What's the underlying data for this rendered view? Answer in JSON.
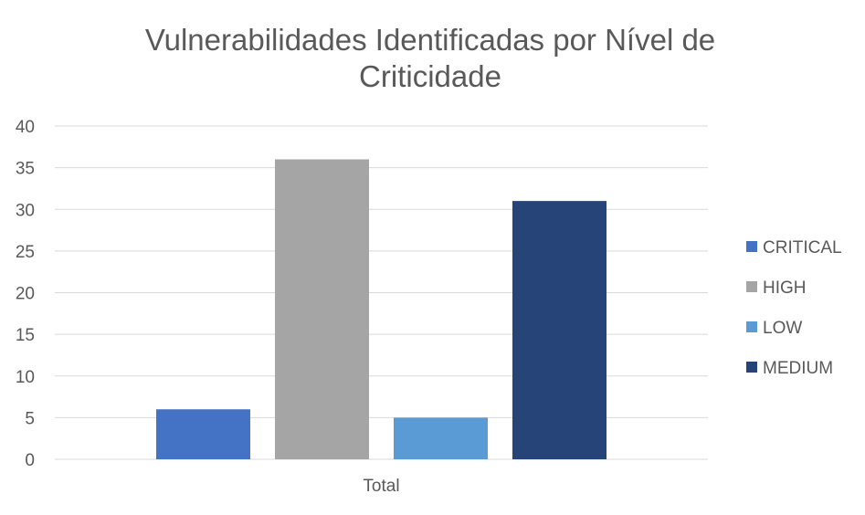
{
  "chart_data": {
    "type": "bar",
    "title_lines": [
      "Vulnerabilidades Identificadas por Nível de",
      "Criticidade"
    ],
    "categories": [
      "Total"
    ],
    "series": [
      {
        "name": "CRITICAL",
        "values": [
          6
        ],
        "color": "#4472C4"
      },
      {
        "name": "HIGH",
        "values": [
          36
        ],
        "color": "#A5A5A5"
      },
      {
        "name": "LOW",
        "values": [
          5
        ],
        "color": "#5B9BD5"
      },
      {
        "name": "MEDIUM",
        "values": [
          31
        ],
        "color": "#264478"
      }
    ],
    "ylim": [
      0,
      40
    ],
    "yticks": [
      "0",
      "5",
      "10",
      "15",
      "20",
      "25",
      "30",
      "35",
      "40"
    ],
    "grid": true,
    "legend_position": "right",
    "colors": {
      "grid": "#D9D9D9",
      "text": "#595959",
      "title": "#595959"
    }
  }
}
